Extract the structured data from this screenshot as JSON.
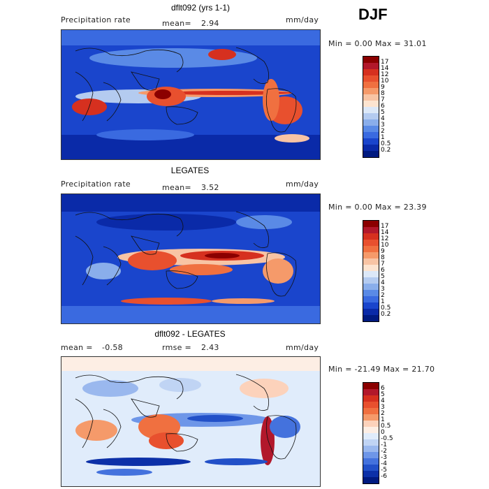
{
  "season": "DJF",
  "panels": [
    {
      "title": "dflt092 (yrs 1-1)",
      "left_label": "Precipitation rate",
      "stat_label": "mean=",
      "stat_value": "2.94",
      "units": "mm/day",
      "minmax": "Min =   0.00 Max =  31.01",
      "colorbar_labels": [
        "17",
        "14",
        "12",
        "10",
        "9",
        "8",
        "7",
        "6",
        "5",
        "4",
        "3",
        "2",
        "1",
        "0.5",
        "0.2"
      ]
    },
    {
      "title": "LEGATES",
      "left_label": "Precipitation rate",
      "stat_label": "mean=",
      "stat_value": "3.52",
      "units": "mm/day",
      "minmax": "Min =   0.00 Max =  23.39",
      "colorbar_labels": [
        "17",
        "14",
        "12",
        "10",
        "9",
        "8",
        "7",
        "6",
        "5",
        "4",
        "3",
        "2",
        "1",
        "0.5",
        "0.2"
      ]
    },
    {
      "title": "dflt092 - LEGATES",
      "left_label": "mean =",
      "left_value": "-0.58",
      "stat_label": "rmse =",
      "stat_value": "2.43",
      "units": "mm/day",
      "minmax": "Min = -21.49 Max =  21.70",
      "colorbar_labels": [
        "6",
        "5",
        "4",
        "3",
        "2",
        "1",
        "0.5",
        "0",
        "-0.5",
        "-1",
        "-2",
        "-3",
        "-4",
        "-5",
        "-6"
      ]
    }
  ],
  "colors": {
    "precip_scale": [
      "#8b0000",
      "#b2182b",
      "#d6301f",
      "#e8502e",
      "#f07040",
      "#f59a6a",
      "#f8c4a4",
      "#fde4d0",
      "#dce8f8",
      "#b4cbf0",
      "#8aaeeb",
      "#5a8ae6",
      "#3a6ae0",
      "#1a45cc",
      "#0a2aa8",
      "#001a80"
    ],
    "diff_scale": [
      "#8b0000",
      "#b2182b",
      "#d6301f",
      "#e8502e",
      "#f07040",
      "#f59a6a",
      "#fcd2bb",
      "#fdeee4",
      "#e0ecfb",
      "#c0d4f4",
      "#9ab8ee",
      "#6e96e8",
      "#4472dd",
      "#2250c8",
      "#0c30a8",
      "#001a80"
    ]
  }
}
